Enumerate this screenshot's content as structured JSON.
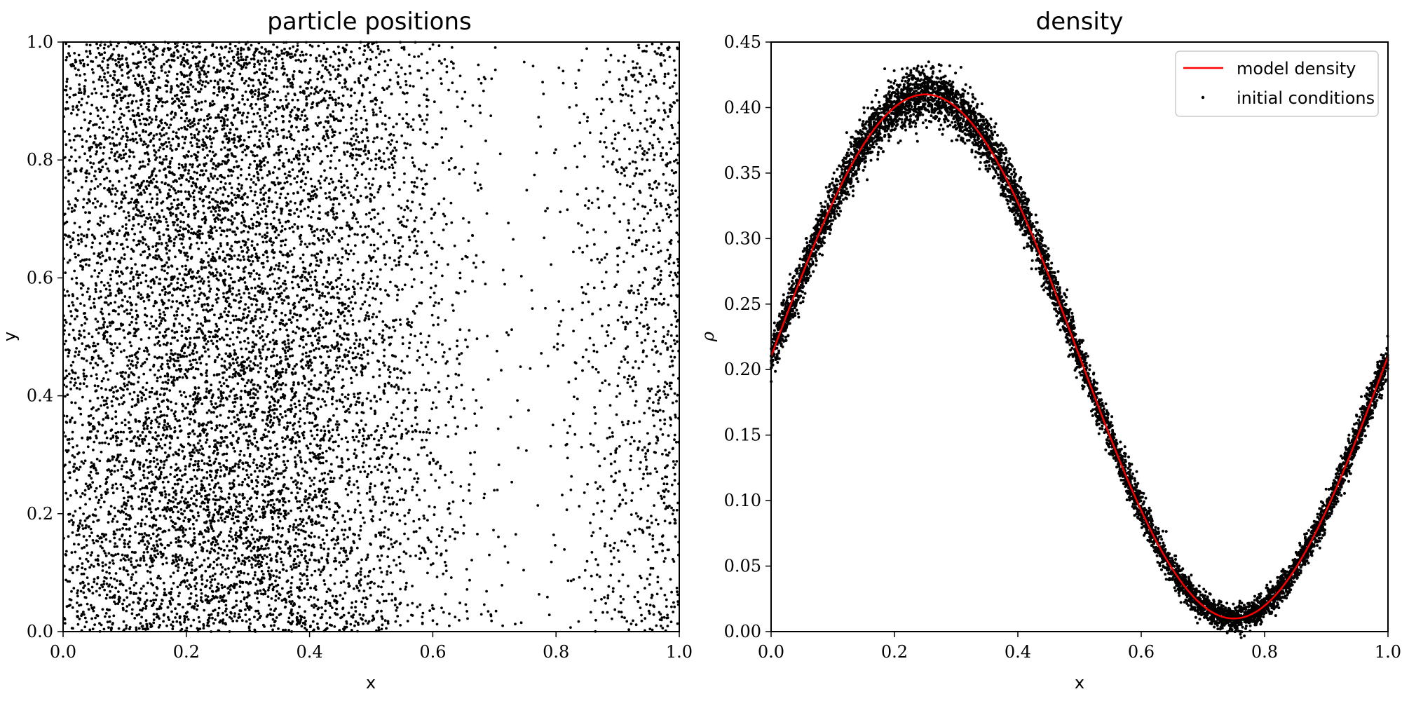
{
  "chart_data": [
    {
      "type": "scatter",
      "title": "particle positions",
      "xlabel": "x",
      "ylabel": "y",
      "xlim": [
        0.0,
        1.0
      ],
      "ylim": [
        0.0,
        1.0
      ],
      "xticks": [
        "0.0",
        "0.2",
        "0.4",
        "0.6",
        "0.8",
        "1.0"
      ],
      "yticks": [
        "0.0",
        "0.2",
        "0.4",
        "0.6",
        "0.8",
        "1.0"
      ],
      "grid": false,
      "series": [
        {
          "marker_color": "#000000",
          "distribution": {
            "density_profile": "0.21 + 0.2*sin(2*pi*x)",
            "approx_particle_count": 10000
          }
        }
      ]
    },
    {
      "type": "scatter",
      "title": "density",
      "xlabel": "x",
      "ylabel": "ρ",
      "xlim": [
        0.0,
        1.0
      ],
      "ylim": [
        0.0,
        0.45
      ],
      "xticks": [
        "0.0",
        "0.2",
        "0.4",
        "0.6",
        "0.8",
        "1.0"
      ],
      "yticks": [
        "0.00",
        "0.05",
        "0.10",
        "0.15",
        "0.20",
        "0.25",
        "0.30",
        "0.35",
        "0.40",
        "0.45"
      ],
      "grid": false,
      "legend_position": "top-right",
      "series": [
        {
          "name": "model density",
          "type": "line",
          "color": "#ff0000",
          "x": [
            0.0,
            0.05,
            0.1,
            0.15,
            0.2,
            0.25,
            0.3,
            0.35,
            0.4,
            0.45,
            0.5,
            0.55,
            0.6,
            0.65,
            0.7,
            0.75,
            0.8,
            0.85,
            0.9,
            0.95,
            1.0
          ],
          "y": [
            0.21,
            0.272,
            0.328,
            0.372,
            0.4,
            0.41,
            0.4,
            0.372,
            0.328,
            0.272,
            0.21,
            0.148,
            0.092,
            0.048,
            0.02,
            0.01,
            0.02,
            0.048,
            0.092,
            0.148,
            0.21
          ]
        },
        {
          "name": "initial conditions",
          "type": "scatter",
          "color": "#000000",
          "spread": 0.008
        }
      ]
    }
  ]
}
